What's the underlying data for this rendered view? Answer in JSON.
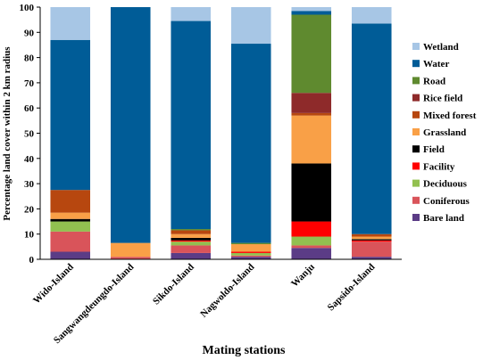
{
  "chart_data": {
    "type": "bar",
    "stacked": true,
    "xlabel": "Mating stations",
    "ylabel": "Percentage land cover within 2 km radius",
    "ylim": [
      0,
      100
    ],
    "yticks": [
      0,
      10,
      20,
      30,
      40,
      50,
      60,
      70,
      80,
      90,
      100
    ],
    "grid": false,
    "legend_position": "right",
    "categories": [
      "Wido-Island",
      "Sangwangdeungdo-Island",
      "Sikdo-Island",
      "Nagwoldo-Island",
      "Wanju",
      "Sapsido-Island"
    ],
    "series": [
      {
        "name": "Bare land",
        "color": "#5B3C86",
        "values": [
          3,
          0,
          2.5,
          1,
          4.5,
          1
        ]
      },
      {
        "name": "Coniferous",
        "color": "#D9545A",
        "values": [
          8,
          1,
          3,
          0.5,
          1,
          6
        ]
      },
      {
        "name": "Deciduous",
        "color": "#92C050",
        "values": [
          4,
          0,
          1.5,
          1,
          3.5,
          0
        ]
      },
      {
        "name": "Facility",
        "color": "#FF0000",
        "values": [
          0,
          0,
          0.5,
          0.5,
          6,
          0.5
        ]
      },
      {
        "name": "Field",
        "color": "#000000",
        "values": [
          1,
          0,
          1,
          0,
          23,
          0.5
        ]
      },
      {
        "name": "Grassland",
        "color": "#F9A047",
        "values": [
          2.5,
          5.5,
          1.5,
          3,
          19,
          1
        ]
      },
      {
        "name": "Mixed forest",
        "color": "#B7470F",
        "values": [
          9,
          0,
          1.5,
          0,
          1,
          1
        ]
      },
      {
        "name": "Rice field",
        "color": "#8E2A2A",
        "values": [
          0,
          0,
          0,
          0,
          8,
          0
        ]
      },
      {
        "name": "Road",
        "color": "#5F8A2F",
        "values": [
          0,
          0,
          0.5,
          0.5,
          31,
          0
        ]
      },
      {
        "name": "Water",
        "color": "#005C97",
        "values": [
          59.5,
          93.5,
          82.5,
          79,
          1.5,
          83.5
        ]
      },
      {
        "name": "Wetland",
        "color": "#A7C6E5",
        "values": [
          13,
          0,
          5.5,
          14.5,
          1.5,
          6.5
        ]
      }
    ]
  }
}
